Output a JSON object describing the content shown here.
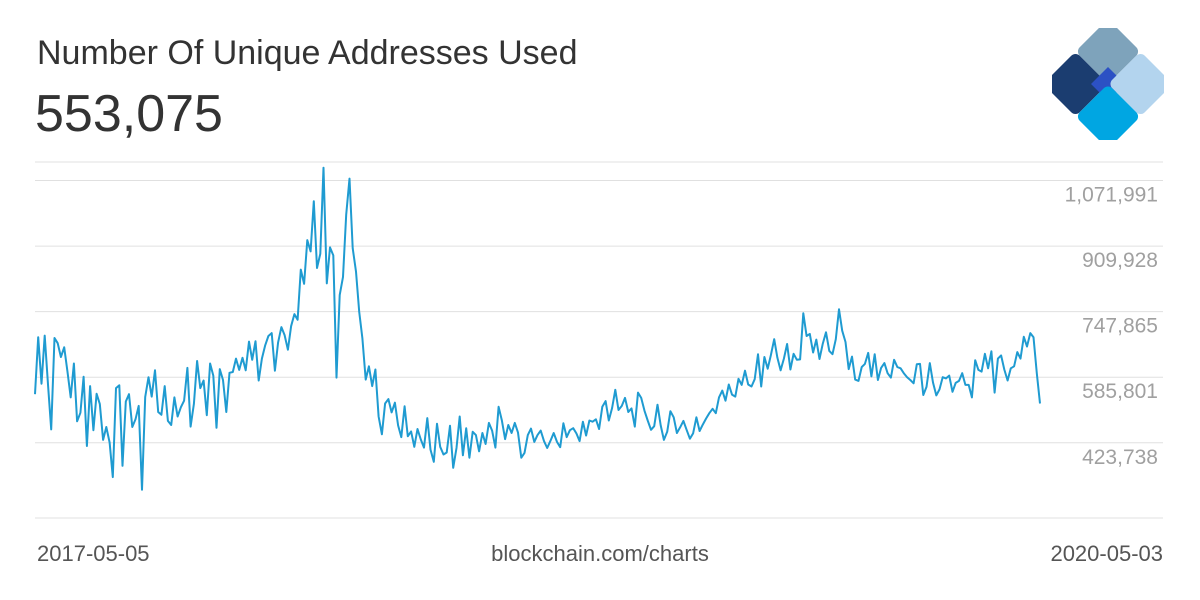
{
  "header": {
    "title": "Number Of Unique Addresses Used",
    "current_value": "553,075"
  },
  "footer": {
    "start_date": "2017-05-05",
    "source": "blockchain.com/charts",
    "end_date": "2020-05-03"
  },
  "logo": {
    "icon": "blockchain-diamond-logo",
    "colors": [
      "#7ea3bb",
      "#1b3d70",
      "#2c51c4",
      "#b3d4ee",
      "#00a6e2"
    ]
  },
  "colors": {
    "line": "#1f9bd1",
    "grid": "#e0e0e0",
    "tick_text": "#a0a0a0"
  },
  "chart_data": {
    "type": "line",
    "title": "Number Of Unique Addresses Used",
    "x_start": "2017-05-05",
    "x_end": "2020-05-03",
    "ylim": [
      270000,
      1150000
    ],
    "y_ticks": [
      423738,
      585801,
      747865,
      909928,
      1071991
    ],
    "y_tick_labels": [
      "423,738",
      "585,801",
      "747,865",
      "909,928",
      "1,071,991"
    ],
    "grid": true,
    "series": [
      {
        "values": [
          576000,
          717000,
          602000,
          721000,
          600000,
          489000,
          715000,
          702000,
          668000,
          692000,
          633000,
          568000,
          652000,
          509000,
          530000,
          619000,
          448000,
          596000,
          487000,
          577000,
          552000,
          463000,
          495000,
          457000,
          371000,
          591000,
          598000,
          399000,
          558000,
          576000,
          495000,
          514000,
          547000,
          340000,
          569000,
          618000,
          570000,
          635000,
          532000,
          525000,
          596000,
          510000,
          500000,
          568000,
          521000,
          544000,
          560000,
          641000,
          496000,
          552000,
          658000,
          591000,
          610000,
          524000,
          652000,
          622000,
          493000,
          638000,
          611000,
          532000,
          629000,
          631000,
          664000,
          636000,
          666000,
          635000,
          706000,
          661000,
          707000,
          610000,
          664000,
          697000,
          720000,
          727000,
          634000,
          704000,
          742000,
          722000,
          686000,
          744000,
          774000,
          760000,
          884000,
          849000,
          957000,
          929000,
          1053000,
          888000,
          923000,
          1136000,
          850000,
          939000,
          919000,
          617000,
          821000,
          866000,
          1020000,
          1109000,
          937000,
          879000,
          780000,
          714000,
          612000,
          645000,
          596000,
          637000,
          521000,
          477000,
          553000,
          564000,
          531000,
          555000,
          499000,
          470000,
          546000,
          472000,
          484000,
          446000,
          490000,
          464000,
          444000,
          517000,
          439000,
          409000,
          503000,
          446000,
          427000,
          432000,
          498000,
          394000,
          443000,
          521000,
          425000,
          492000,
          419000,
          483000,
          475000,
          435000,
          480000,
          453000,
          505000,
          486000,
          444000,
          545000,
          512000,
          465000,
          500000,
          480000,
          505000,
          481000,
          419000,
          431000,
          475000,
          491000,
          458000,
          475000,
          486000,
          460000,
          443000,
          461000,
          480000,
          458000,
          445000,
          504000,
          470000,
          487000,
          492000,
          479000,
          460000,
          508000,
          474000,
          511000,
          508000,
          514000,
          490000,
          545000,
          559000,
          511000,
          542000,
          587000,
          537000,
          547000,
          567000,
          532000,
          541000,
          496000,
          580000,
          567000,
          535000,
          511000,
          488000,
          497000,
          550000,
          499000,
          463000,
          483000,
          534000,
          519000,
          480000,
          494000,
          510000,
          488000,
          466000,
          479000,
          519000,
          485000,
          501000,
          516000,
          529000,
          540000,
          529000,
          568000,
          585000,
          560000,
          600000,
          575000,
          570000,
          614000,
          599000,
          634000,
          600000,
          595000,
          613000,
          675000,
          595000,
          668000,
          639000,
          673000,
          712000,
          666000,
          635000,
          664000,
          700000,
          637000,
          676000,
          661000,
          662000,
          776000,
          720000,
          725000,
          679000,
          711000,
          663000,
          701000,
          729000,
          683000,
          675000,
          712000,
          786000,
          733000,
          705000,
          638000,
          669000,
          612000,
          609000,
          643000,
          651000,
          678000,
          620000,
          675000,
          611000,
          641000,
          653000,
          628000,
          617000,
          661000,
          643000,
          640000,
          628000,
          618000,
          611000,
          603000,
          650000,
          651000,
          574000,
          594000,
          653000,
          605000,
          573000,
          588000,
          618000,
          615000,
          622000,
          582000,
          604000,
          609000,
          628000,
          599000,
          599000,
          568000,
          660000,
          636000,
          632000,
          676000,
          640000,
          682000,
          580000,
          664000,
          672000,
          637000,
          610000,
          640000,
          645000,
          680000,
          664000,
          718000,
          694000,
          727000,
          717000,
          628000,
          553000
        ]
      }
    ]
  }
}
